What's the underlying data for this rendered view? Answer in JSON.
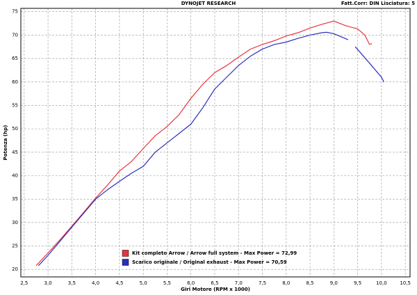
{
  "chart_data": {
    "type": "line",
    "title": "DYNOJET RESEARCH",
    "subtitle": "Fatt.Corr: DIN  Lisciatura: 5",
    "x_label": "Giri Motore (RPM x 1000)",
    "y_label": "Potenza (hp)",
    "xlim": [
      2.43,
      10.6
    ],
    "ylim": [
      18.4,
      75.7
    ],
    "xticks": [
      {
        "value": 2.5,
        "label": "2,5"
      },
      {
        "value": 3.0,
        "label": "3,0"
      },
      {
        "value": 3.5,
        "label": "3,5"
      },
      {
        "value": 4.0,
        "label": "4,0"
      },
      {
        "value": 4.5,
        "label": "4,5"
      },
      {
        "value": 5.0,
        "label": "5,0"
      },
      {
        "value": 5.5,
        "label": "5,5"
      },
      {
        "value": 6.0,
        "label": "6,0"
      },
      {
        "value": 6.5,
        "label": "6,5"
      },
      {
        "value": 7.0,
        "label": "7,0"
      },
      {
        "value": 7.5,
        "label": "7,5"
      },
      {
        "value": 8.0,
        "label": "8,0"
      },
      {
        "value": 8.5,
        "label": "8,5"
      },
      {
        "value": 9.0,
        "label": "9,0"
      },
      {
        "value": 9.5,
        "label": "9,5"
      },
      {
        "value": 10.0,
        "label": "10,0"
      },
      {
        "value": 10.5,
        "label": "10,5"
      }
    ],
    "yticks": [
      20,
      25,
      30,
      35,
      40,
      45,
      50,
      55,
      60,
      65,
      70,
      75
    ],
    "grid": true,
    "series": [
      {
        "name": "Kit completo Arrow / Arrow full system - Max Power = 72,99",
        "color": "#e8333a",
        "x": [
          2.75,
          3.0,
          3.25,
          3.5,
          3.75,
          4.0,
          4.25,
          4.5,
          4.75,
          5.0,
          5.25,
          5.5,
          5.75,
          6.0,
          6.25,
          6.5,
          6.75,
          7.0,
          7.25,
          7.5,
          7.75,
          8.0,
          8.25,
          8.5,
          8.75,
          9.0,
          9.25,
          9.5,
          9.65,
          9.75,
          9.8
        ],
        "values": [
          20.8,
          23.5,
          26.3,
          29.2,
          32.2,
          35.2,
          38.0,
          41.0,
          43.0,
          45.8,
          48.5,
          50.5,
          53.0,
          56.5,
          59.5,
          62.0,
          63.5,
          65.3,
          67.0,
          68.0,
          68.8,
          69.8,
          70.5,
          71.5,
          72.3,
          72.99,
          72.0,
          71.3,
          70.0,
          68.0,
          68.2
        ]
      },
      {
        "name": "Scarico originale / Original exhaust - Max Power = 70,59",
        "color": "#2a2fb8",
        "x": [
          2.8,
          3.0,
          3.25,
          3.5,
          3.75,
          4.0,
          4.25,
          4.5,
          4.75,
          5.0,
          5.25,
          5.5,
          5.75,
          6.0,
          6.25,
          6.5,
          6.75,
          7.0,
          7.25,
          7.5,
          7.75,
          8.0,
          8.25,
          8.5,
          8.75,
          8.85,
          9.0,
          9.3,
          9.38,
          9.45,
          9.75,
          10.0,
          10.05
        ],
        "values": [
          20.8,
          23.0,
          26.0,
          29.0,
          32.0,
          35.0,
          37.0,
          38.8,
          40.5,
          42.0,
          45.0,
          47.0,
          49.0,
          51.0,
          54.5,
          58.5,
          61.0,
          63.5,
          65.5,
          67.0,
          68.0,
          68.5,
          69.3,
          70.0,
          70.5,
          70.59,
          70.3,
          69.0,
          null,
          67.5,
          64.0,
          61.0,
          60.0
        ]
      }
    ]
  }
}
